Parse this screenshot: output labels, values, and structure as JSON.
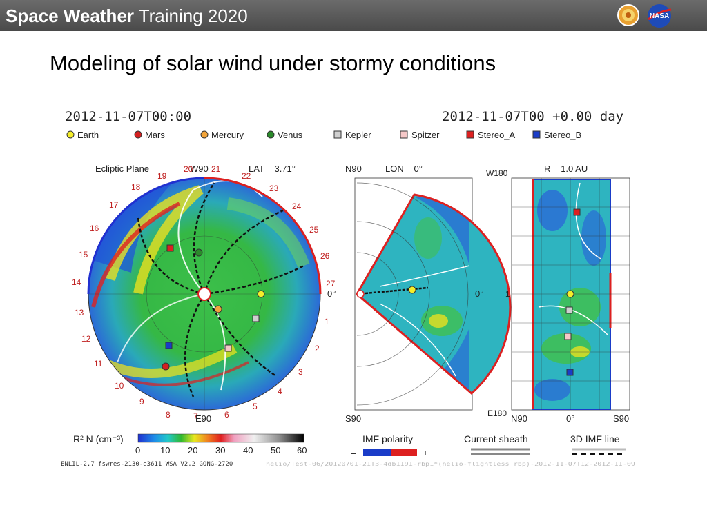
{
  "header": {
    "title_strong": "Space Weather",
    "title_rest": " Training 2020",
    "bg_color": "#555555",
    "logo_left_icon": "sun-logo-icon",
    "logo_right_icon": "nasa-meatball-icon",
    "logo_right_text": "NASA"
  },
  "slide": {
    "title": "Modeling of solar wind under stormy conditions"
  },
  "figure": {
    "date_left": "2012-11-07T00:00",
    "date_right": "2012-11-07T00 +0.00 day",
    "legend": [
      {
        "label": "Earth",
        "color": "#f5ee2a",
        "shape": "circle"
      },
      {
        "label": "Mars",
        "color": "#d42020",
        "shape": "circle"
      },
      {
        "label": "Mercury",
        "color": "#f2a43a",
        "shape": "circle"
      },
      {
        "label": "Venus",
        "color": "#2a8a2a",
        "shape": "circle"
      },
      {
        "label": "Kepler",
        "color": "#cfcfcf",
        "shape": "square"
      },
      {
        "label": "Spitzer",
        "color": "#f5c8c8",
        "shape": "square"
      },
      {
        "label": "Stereo_A",
        "color": "#dd2020",
        "shape": "square"
      },
      {
        "label": "Stereo_B",
        "color": "#1a3cc8",
        "shape": "square"
      }
    ],
    "ecliptic": {
      "label": "Ecliptic Plane",
      "w90": "W90",
      "lat": "LAT = 3.71°",
      "e90": "E90",
      "numbers": [
        "1",
        "2",
        "3",
        "4",
        "5",
        "6",
        "7",
        "8",
        "9",
        "10",
        "11",
        "12",
        "13",
        "14",
        "15",
        "16",
        "17",
        "18",
        "19",
        "20",
        "21",
        "22",
        "23",
        "24",
        "25",
        "26",
        "27"
      ]
    },
    "meridional": {
      "n90": "N90",
      "lon": "LON = 0°",
      "zero_left": "0°",
      "zero_right": "0°",
      "s90": "S90"
    },
    "map": {
      "r_label": "R = 1.0 AU",
      "w180": "W180",
      "one": "1",
      "e180": "E180",
      "n90": "N90",
      "zero": "0°",
      "s90": "S90"
    },
    "colorbar": {
      "label": "R² N (cm⁻³)",
      "ticks": [
        "0",
        "10",
        "20",
        "30",
        "40",
        "50",
        "60"
      ]
    },
    "imf": {
      "label": "IMF polarity",
      "minus": "–",
      "plus": "+",
      "neg_color": "#1a3cc8",
      "pos_color": "#dd2020"
    },
    "current_sheath": "Current sheath",
    "imf_line": "3D IMF line",
    "footer_left": "ENLIL-2.7 fswres-2130-e3611 WSA_V2.2 GONG-2720",
    "footer_right": "helio/Test-06/20120701-21T3-4db1191-rbp1*(helio-flightless rbp)-2012-11-07T12-2012-11-09"
  }
}
